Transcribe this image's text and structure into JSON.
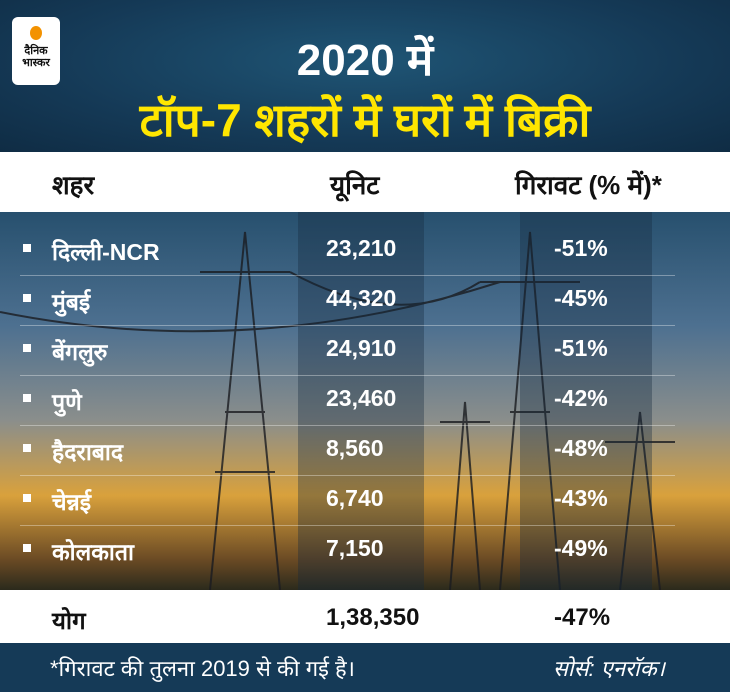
{
  "brand": {
    "logo_text": "दैनिक भास्कर",
    "accent": "#f39200"
  },
  "title": {
    "line1": "2020 में",
    "line2": "टॉप-7 शहरों में घरों में बिक्री"
  },
  "chart_data": {
    "type": "table",
    "title": "2020 में टॉप-7 शहरों में घरों में बिक्री",
    "columns": [
      "शहर",
      "यूनिट",
      "गिरावट (% में)*"
    ],
    "rows": [
      {
        "city": "दिल्ली-NCR",
        "units": "23,210",
        "decline": "-51%"
      },
      {
        "city": "मुंबई",
        "units": "44,320",
        "decline": "-45%"
      },
      {
        "city": "बेंगलुरु",
        "units": "24,910",
        "decline": "-51%"
      },
      {
        "city": "पुणे",
        "units": "23,460",
        "decline": "-42%"
      },
      {
        "city": "हैदराबाद",
        "units": "8,560",
        "decline": "-48%"
      },
      {
        "city": "चेन्नई",
        "units": "6,740",
        "decline": "-43%"
      },
      {
        "city": "कोलकाता",
        "units": "7,150",
        "decline": "-49%"
      }
    ],
    "total": {
      "city": "योग",
      "units": "1,38,350",
      "decline": "-47%"
    }
  },
  "footer": {
    "note": "*गिरावट की तुलना 2019 से की गई है।",
    "source": "सोर्स: एनरॉक।"
  }
}
